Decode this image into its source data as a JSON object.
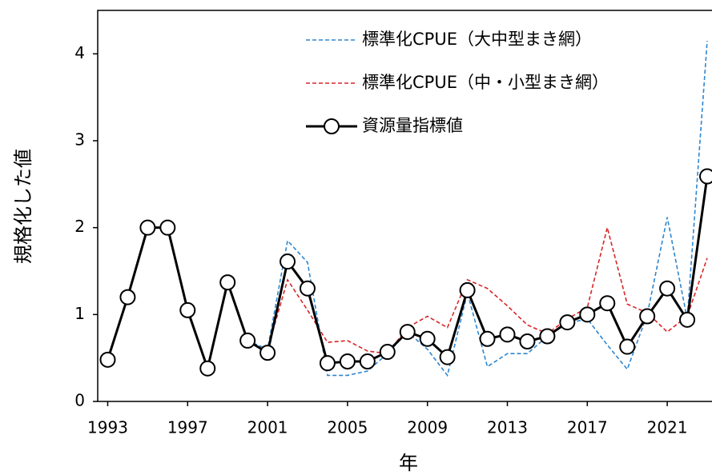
{
  "chart_data": {
    "type": "line",
    "y_label": "規格化した値",
    "x_label": "年",
    "x": [
      1993,
      1994,
      1995,
      1996,
      1997,
      1998,
      1999,
      2000,
      2001,
      2002,
      2003,
      2004,
      2005,
      2006,
      2007,
      2008,
      2009,
      2010,
      2011,
      2012,
      2013,
      2014,
      2015,
      2016,
      2017,
      2018,
      2019,
      2020,
      2021,
      2022,
      2023
    ],
    "series": [
      {
        "name": "標準化CPUE（大中型まき網）",
        "color": "#2e86d0",
        "dashed": true,
        "markers": false,
        "values": [
          0.48,
          1.2,
          2.0,
          2.0,
          1.05,
          0.38,
          1.37,
          0.7,
          0.6,
          1.85,
          1.6,
          0.3,
          0.3,
          0.35,
          0.55,
          0.8,
          0.6,
          0.3,
          1.25,
          0.4,
          0.55,
          0.55,
          0.75,
          0.9,
          0.95,
          0.65,
          0.37,
          1.0,
          2.12,
          0.95,
          4.15
        ]
      },
      {
        "name": "標準化CPUE（中・小型まき網）",
        "color": "#d62728",
        "dashed": true,
        "markers": false,
        "values": [
          null,
          null,
          null,
          null,
          null,
          null,
          null,
          null,
          0.6,
          1.4,
          1.05,
          0.68,
          0.7,
          0.58,
          0.55,
          0.85,
          0.98,
          0.85,
          1.4,
          1.3,
          1.1,
          0.88,
          0.78,
          0.95,
          1.08,
          2.0,
          1.12,
          1.02,
          0.8,
          0.98,
          1.65
        ]
      },
      {
        "name": "資源量指標値",
        "color": "#000000",
        "dashed": false,
        "markers": true,
        "values": [
          0.48,
          1.2,
          2.0,
          2.0,
          1.05,
          0.38,
          1.37,
          0.7,
          0.56,
          1.61,
          1.3,
          0.44,
          0.46,
          0.46,
          0.57,
          0.8,
          0.72,
          0.51,
          1.28,
          0.72,
          0.77,
          0.69,
          0.75,
          0.91,
          1.0,
          1.13,
          0.63,
          0.98,
          1.3,
          0.94,
          2.59
        ]
      }
    ],
    "xlim": [
      1992.5,
      2023.2
    ],
    "xticks": [
      1993,
      1997,
      2001,
      2005,
      2009,
      2013,
      2017,
      2021
    ],
    "ylim": [
      0,
      4.5
    ],
    "yticks": [
      0,
      1,
      2,
      3,
      4
    ],
    "grid": false,
    "legend": "upper right"
  }
}
